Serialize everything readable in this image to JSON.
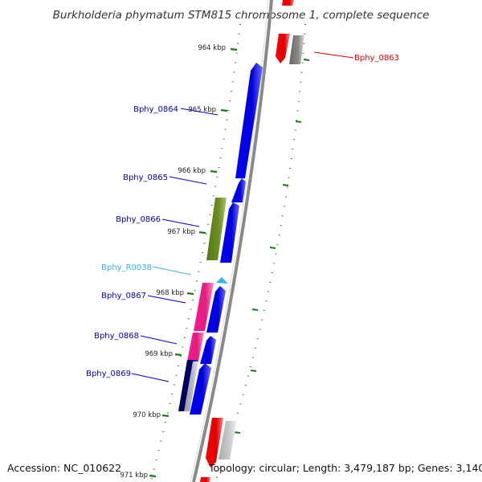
{
  "title": "Burkholderia phymatum STM815 chromosome 1, complete sequence",
  "accession_text": "Accession: NC_010622",
  "summary_text": "Topology: circular; Length: 3,479,187 bp; Genes: 3,140",
  "ticks": [
    "964 kbp",
    "965 kbp",
    "966 kbp",
    "967 kbp",
    "968 kbp",
    "969 kbp",
    "970 kbp",
    "971 kbp"
  ],
  "gene_labels": {
    "g0863": "Bphy_0863",
    "g0864": "Bphy_0864",
    "g0865": "Bphy_0865",
    "g0866": "Bphy_0866",
    "r0038": "Bphy_R0038",
    "g0867": "Bphy_0867",
    "g0868": "Bphy_0868",
    "g0869": "Bphy_0869"
  },
  "colors": {
    "forward_gene": "#0000ee",
    "reverse_gene": "#ee0000",
    "rna_gene": "#33b5e5",
    "cog_green": "#668822",
    "cog_pink": "#ee2288",
    "cog_navy": "#000066",
    "cog_gray": "#777777",
    "backbone": "#8a8a8a",
    "tick_green": "#1a7a1a"
  }
}
